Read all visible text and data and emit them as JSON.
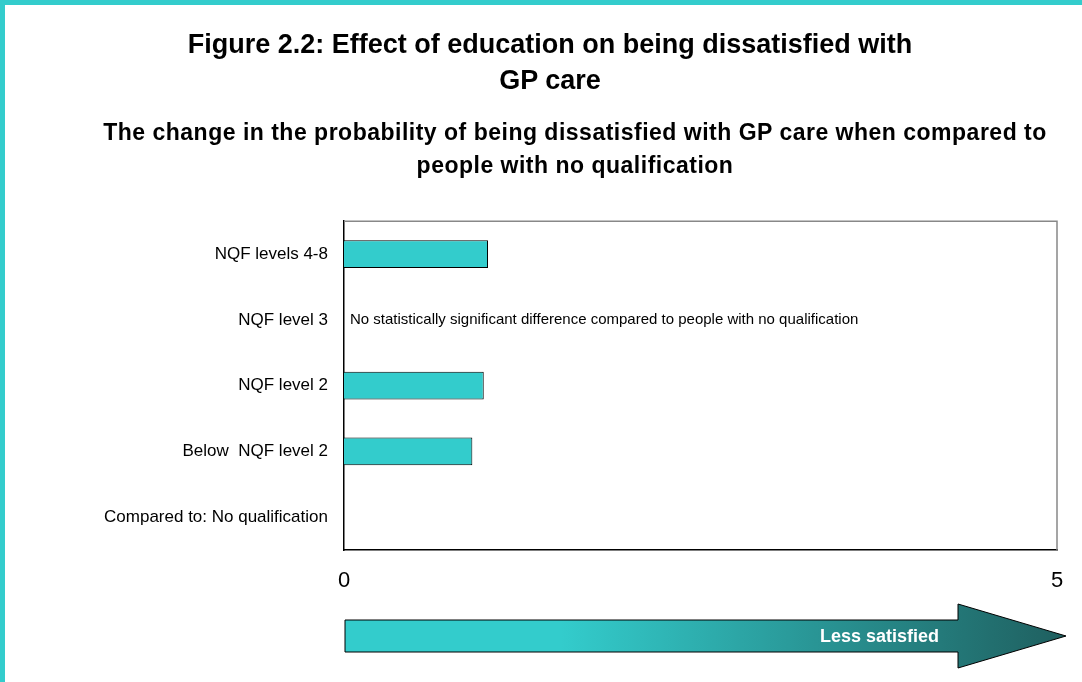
{
  "chart_data": {
    "type": "bar",
    "orientation": "horizontal",
    "title": "Figure 2.2: Effect of education on being dissatisfied with GP care",
    "subtitle": "The change in the probability of being dissatisfied with GP care when compared to people with no qualification",
    "categories": [
      "NQF levels 4-8",
      "NQF level 3",
      "NQF level 2",
      "Below  NQF level 2",
      "Compared to: No qualification"
    ],
    "values": [
      1.01,
      null,
      0.98,
      0.9,
      null
    ],
    "color": "#33cccc",
    "xlim": [
      0,
      5
    ],
    "xticks": [
      0,
      5
    ],
    "grid": false,
    "legend": false,
    "annotations": [
      "No statistically significant difference compared to people with no qualification",
      "Less satisfied"
    ]
  }
}
